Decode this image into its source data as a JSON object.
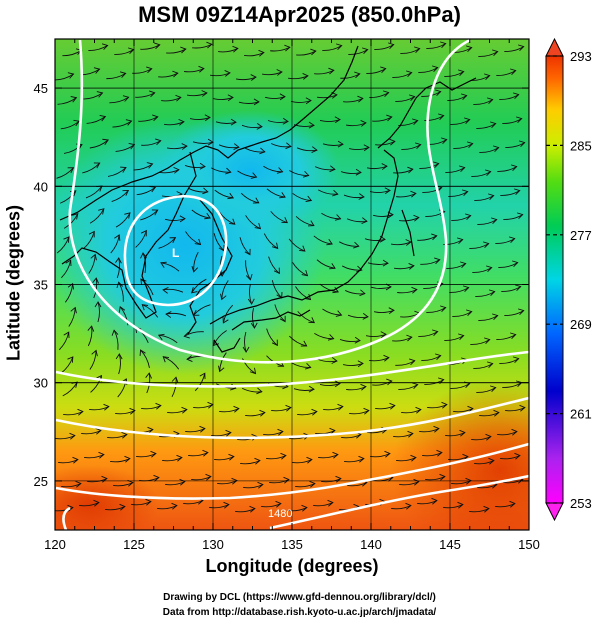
{
  "title": "MSM 09Z14Apr2025 (850.0hPa)",
  "map": {
    "xlabel": "Longitude (degrees)",
    "ylabel": "Latitude  (degrees)",
    "lon_range": [
      120,
      150
    ],
    "lat_range": [
      22.5,
      47.5
    ],
    "lon_ticks": [
      "120",
      "125",
      "130",
      "135",
      "140",
      "145",
      "150"
    ],
    "lat_ticks": [
      "25",
      "30",
      "35",
      "40",
      "45"
    ],
    "grid": true,
    "colorbar": {
      "ticks": [
        "293",
        "285",
        "277",
        "269",
        "261",
        "253"
      ],
      "range": [
        253,
        293
      ],
      "colors": [
        "#ff00ff",
        "#0000cc",
        "#0099ff",
        "#00e5e5",
        "#00cc44",
        "#99dd00",
        "#ffdd00",
        "#ff6600",
        "#ee2200"
      ]
    },
    "contour_labels": [
      "1480"
    ],
    "low_center_label": "L"
  },
  "credits": {
    "line1": "Drawing by DCL (https://www.gfd-dennou.org/library/dcl/)",
    "line2": "Data from http://database.rish.kyoto-u.ac.jp/arch/jmadata/"
  }
}
